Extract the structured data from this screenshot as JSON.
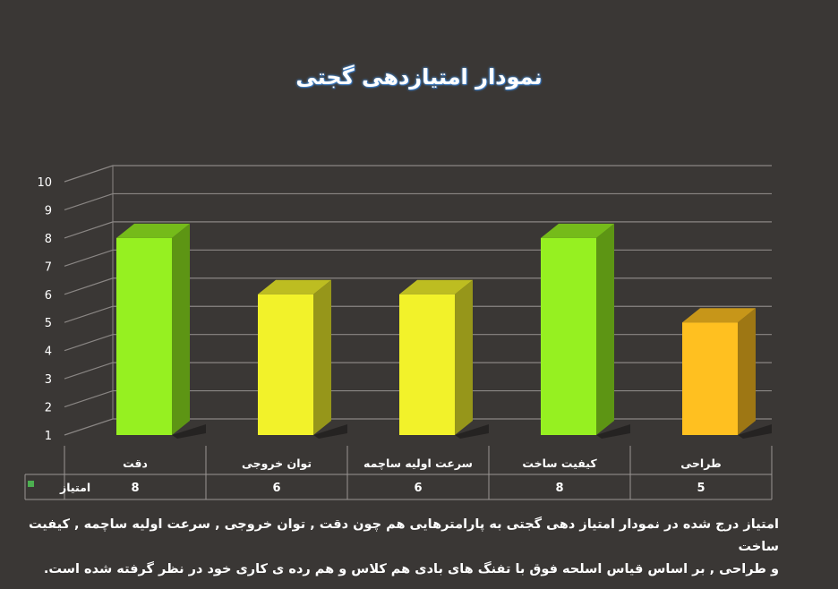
{
  "chart_data": {
    "type": "bar",
    "title": "نمودار امتیازدهی گجتی",
    "categories": [
      "دقت",
      "توان خروجی",
      "سرعت اولیه ساچمه",
      "کیفیت ساخت",
      "طراحی"
    ],
    "series": [
      {
        "name": "امتیاز",
        "values": [
          8,
          6,
          6,
          8,
          5
        ]
      }
    ],
    "bar_colors": [
      "#96f021",
      "#f2f22a",
      "#f2f22a",
      "#96f021",
      "#ffc020"
    ],
    "legend_color": "#4caf50",
    "ylim": [
      1,
      10
    ],
    "yticks": [
      1,
      2,
      3,
      4,
      5,
      6,
      7,
      8,
      9,
      10
    ],
    "grid": true,
    "data_table": true
  },
  "caption": {
    "line1": "امتیاز درج شده در نمودار امتیاز دهی گجتی  به پارامترهایی هم چون دقت , توان خروجی , سرعت اولیه ساچمه , کیفیت ساخت",
    "line2": "و طراحی , بر اساس قیاس اسلحه فوق با تفنگ های بادی هم کلاس و هم رده ی کاری خود در نظر گرفته شده است."
  }
}
